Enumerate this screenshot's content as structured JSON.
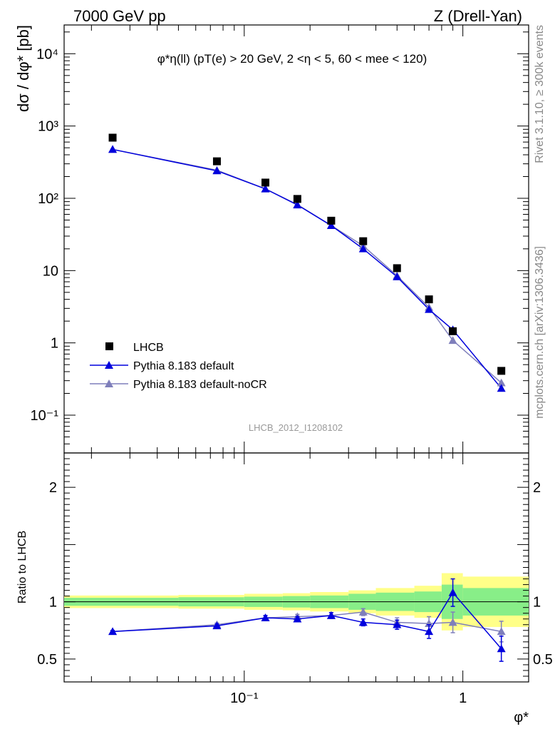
{
  "header": {
    "left": "7000 GeV pp",
    "right": "Z (Drell-Yan)"
  },
  "annotations": {
    "side_top": "Rivet 3.1.10, ≥ 300k events",
    "side_bottom": "mcplots.cern.ch [arXiv:1306.3436]",
    "analysis_id": "LHCB_2012_I1208102"
  },
  "chart_data": [
    {
      "type": "scatter",
      "title": "φ*η(ll) (pT(e) > 20 GeV, 2 <η < 5, 60 < mee < 120)",
      "xlabel": "φ*",
      "ylabel": "dσ / dφ* [pb]",
      "xscale": "log",
      "yscale": "log",
      "xlim": [
        0.015,
        2.0
      ],
      "ylim": [
        0.03,
        25000
      ],
      "y_tick_labels": [
        "10⁻¹",
        "1",
        "10",
        "10²",
        "10³",
        "10⁴"
      ],
      "x_tick_labels": [
        "10⁻¹",
        "1"
      ],
      "legend_position": "bottom-left",
      "colors": {
        "data": "#000000",
        "default": "#0000dd",
        "noCR": "#7f7fbb"
      },
      "x": [
        0.025,
        0.075,
        0.125,
        0.175,
        0.25,
        0.35,
        0.5,
        0.7,
        0.9,
        1.5
      ],
      "series": [
        {
          "name": "LHCB",
          "marker": "square",
          "values": [
            690,
            325,
            165,
            98,
            49,
            25.5,
            10.8,
            4.0,
            1.45,
            0.41
          ]
        },
        {
          "name": "Pythia 8.183 default",
          "marker": "triangle",
          "values": [
            475,
            240,
            135,
            81,
            42,
            20,
            8.2,
            2.9,
            1.52,
            0.235
          ]
        },
        {
          "name": "Pythia 8.183 default-noCR",
          "marker": "triangle",
          "values": [
            475,
            245,
            135,
            82,
            42,
            22,
            8.5,
            3.1,
            1.08,
            0.28
          ]
        }
      ]
    },
    {
      "type": "scatter",
      "ylabel": "Ratio to LHCB",
      "xscale": "log",
      "xlim": [
        0.015,
        2.0
      ],
      "ylim": [
        0.3,
        2.3
      ],
      "y_tick_labels": [
        "0.5",
        "1",
        "2"
      ],
      "x": [
        0.025,
        0.075,
        0.125,
        0.175,
        0.25,
        0.35,
        0.5,
        0.7,
        0.9,
        1.5
      ],
      "band_edges": [
        0.015,
        0.05,
        0.1,
        0.15,
        0.2,
        0.3,
        0.4,
        0.6,
        0.8,
        1.0,
        2.0
      ],
      "band_inner": [
        0.035,
        0.04,
        0.045,
        0.05,
        0.055,
        0.07,
        0.08,
        0.09,
        0.15,
        0.12
      ],
      "band_outer": [
        0.055,
        0.06,
        0.07,
        0.075,
        0.085,
        0.1,
        0.12,
        0.14,
        0.25,
        0.22
      ],
      "series": [
        {
          "name": "Pythia 8.183 default",
          "values": [
            0.74,
            0.79,
            0.86,
            0.85,
            0.88,
            0.82,
            0.8,
            0.74,
            1.08,
            0.59
          ],
          "errors": [
            0.01,
            0.015,
            0.02,
            0.02,
            0.025,
            0.03,
            0.04,
            0.06,
            0.12,
            0.11
          ]
        },
        {
          "name": "Pythia 8.183 default-noCR",
          "values": [
            0.74,
            0.8,
            0.86,
            0.87,
            0.88,
            0.91,
            0.82,
            0.81,
            0.82,
            0.74
          ],
          "errors": [
            0.01,
            0.015,
            0.02,
            0.02,
            0.025,
            0.03,
            0.04,
            0.06,
            0.09,
            0.09
          ]
        }
      ]
    }
  ]
}
